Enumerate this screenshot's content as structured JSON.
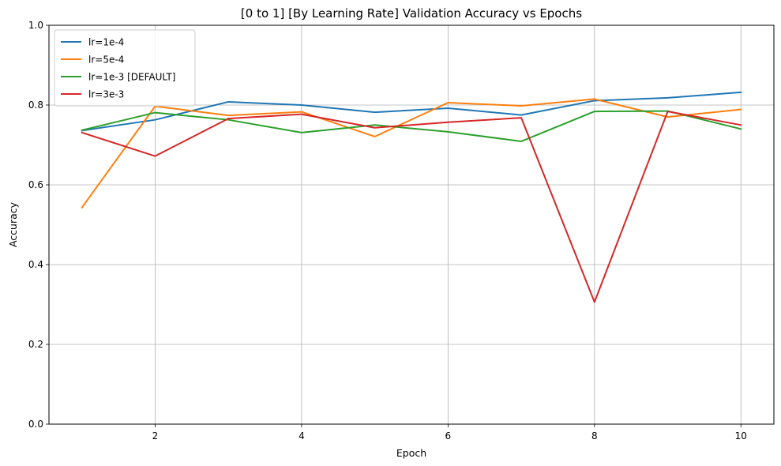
{
  "chart_data": {
    "type": "line",
    "title": "[0 to 1] [By Learning Rate] Validation Accuracy vs Epochs",
    "xlabel": "Epoch",
    "ylabel": "Accuracy",
    "xlim": [
      0.55,
      10.45
    ],
    "ylim": [
      0,
      1
    ],
    "xticks": [
      2,
      4,
      6,
      8,
      10
    ],
    "yticks": [
      0.0,
      0.2,
      0.4,
      0.6,
      0.8,
      1.0
    ],
    "xtick_labels": [
      "2",
      "4",
      "6",
      "8",
      "10"
    ],
    "ytick_labels": [
      "0.0",
      "0.2",
      "0.4",
      "0.6",
      "0.8",
      "1.0"
    ],
    "grid": true,
    "legend_position": "top-left",
    "x": [
      1,
      2,
      3,
      4,
      5,
      6,
      7,
      8,
      9,
      10
    ],
    "series": [
      {
        "name": "lr=1e-4",
        "color": "#1f77b4",
        "values": [
          0.736,
          0.763,
          0.808,
          0.8,
          0.782,
          0.792,
          0.775,
          0.811,
          0.818,
          0.832
        ]
      },
      {
        "name": "lr=5e-4",
        "color": "#ff7f0e",
        "values": [
          0.543,
          0.797,
          0.774,
          0.783,
          0.721,
          0.806,
          0.798,
          0.815,
          0.77,
          0.789
        ]
      },
      {
        "name": "lr=1e-3 [DEFAULT]",
        "color": "#2ca02c",
        "values": [
          0.737,
          0.781,
          0.763,
          0.731,
          0.75,
          0.733,
          0.709,
          0.784,
          0.785,
          0.74
        ]
      },
      {
        "name": "lr=3e-3",
        "color": "#d62728",
        "values": [
          0.731,
          0.672,
          0.766,
          0.777,
          0.743,
          0.757,
          0.768,
          0.306,
          0.784,
          0.75
        ]
      }
    ]
  }
}
